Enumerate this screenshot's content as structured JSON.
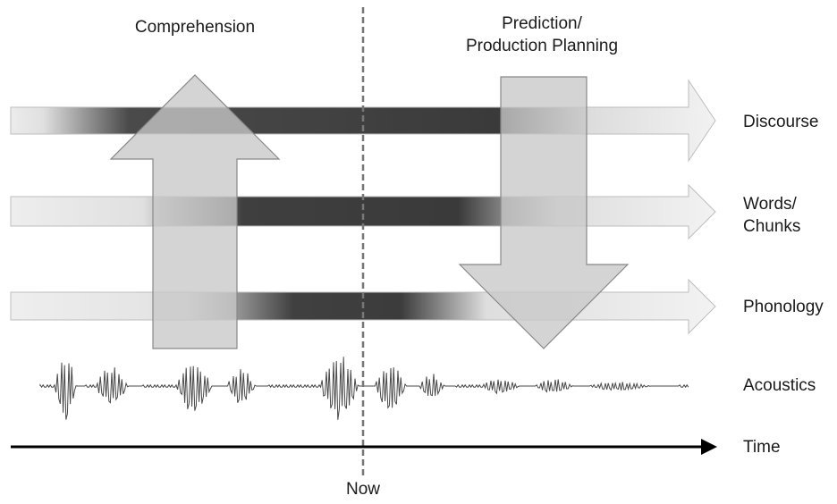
{
  "headings": {
    "comprehension": "Comprehension",
    "prediction_line1": "Prediction/",
    "prediction_line2": "Production Planning"
  },
  "levels": {
    "discourse": "Discourse",
    "words_line1": "Words/",
    "words_line2": "Chunks",
    "phonology": "Phonology",
    "acoustics": "Acoustics"
  },
  "time_label": "Time",
  "now_label": "Now",
  "colors": {
    "band_light": "#ececec",
    "band_dark": "#3a3a3a",
    "block_arrow_fill": "#c8c8c8",
    "block_arrow_stroke": "#888888",
    "now_line": "#777777",
    "axis": "#000000"
  }
}
